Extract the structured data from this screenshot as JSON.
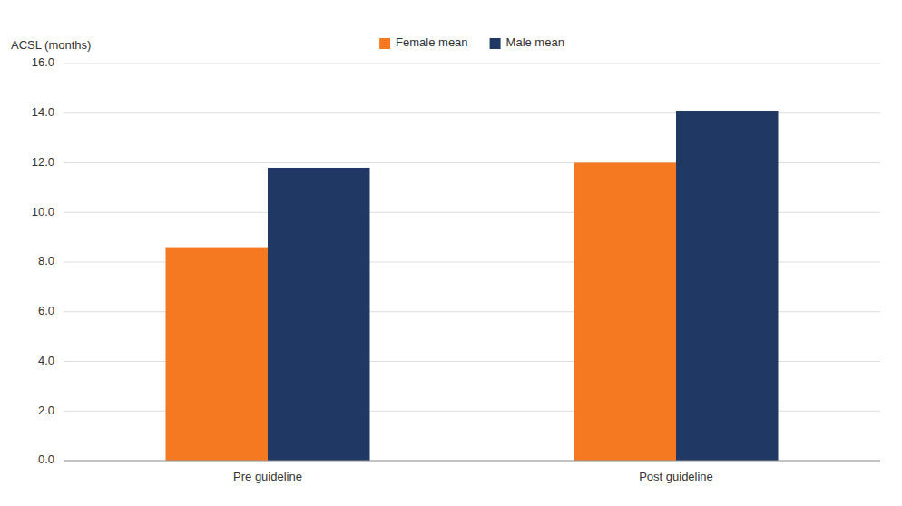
{
  "chart_data": {
    "type": "bar",
    "ylabel": "ACSL (months)",
    "categories": [
      "Pre guideline",
      "Post guideline"
    ],
    "series": [
      {
        "name": "Female mean",
        "color": "#F47920",
        "values": [
          8.6,
          12.0
        ]
      },
      {
        "name": "Male mean",
        "color": "#1F3864",
        "values": [
          11.8,
          14.1
        ]
      }
    ],
    "ylim": [
      0,
      16.0
    ],
    "yticks": [
      {
        "value": 0.0,
        "label": "0.0"
      },
      {
        "value": 2.0,
        "label": "2.0"
      },
      {
        "value": 4.0,
        "label": "4.0"
      },
      {
        "value": 6.0,
        "label": "6.0"
      },
      {
        "value": 8.0,
        "label": "8.0"
      },
      {
        "value": 10.0,
        "label": "10.0"
      },
      {
        "value": 12.0,
        "label": "12.0"
      },
      {
        "value": 14.0,
        "label": "14.0"
      },
      {
        "value": 16.0,
        "label": "16.0"
      }
    ],
    "grid": true,
    "legend": "top"
  }
}
